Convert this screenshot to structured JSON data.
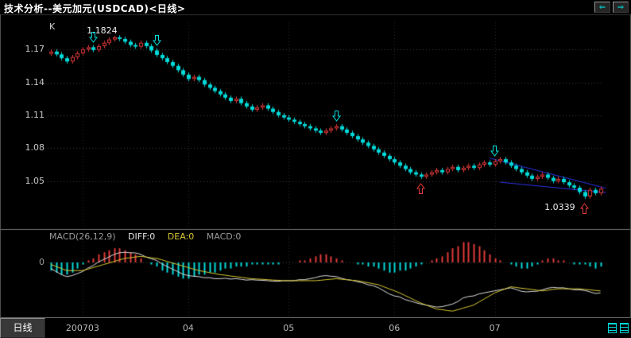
{
  "window": {
    "title": "技术分析--美元加元(USDCAD)<日线>",
    "back_icon": "⇐",
    "forward_icon": "⇒"
  },
  "chart": {
    "type_label": "K",
    "high_annotation": "1.1824",
    "low_annotation": "1.0339"
  },
  "macd_panel": {
    "indicator_label": "MACD(26,12,9)",
    "diff_label": "DIFF:0",
    "dea_label": "DEA:0",
    "macd_label": "MACD:0",
    "zero_label": "0"
  },
  "bottom_bar": {
    "period_label": "日线"
  },
  "colors": {
    "up": "#e23a3a",
    "down": "#00d9d9",
    "grid": "#3f3f3f",
    "vgrid": "#2b2b2b",
    "frame": "#787878",
    "trendline": "#2d35e8",
    "diff_line": "#dcdcdc",
    "dea_line": "#d8c832",
    "annotation": "#ededed"
  },
  "chart_data": {
    "type": "candlestick",
    "title": "USDCAD Daily (日线) with MACD(26,12,9)",
    "y_axis": {
      "ticks": [
        1.17,
        1.14,
        1.11,
        1.08,
        1.05
      ],
      "min": 1.0339,
      "max": 1.1824
    },
    "x_axis": {
      "ticks": [
        {
          "label": "200703",
          "index": 6
        },
        {
          "label": "04",
          "index": 26
        },
        {
          "label": "05",
          "index": 45
        },
        {
          "label": "06",
          "index": 65
        },
        {
          "label": "07",
          "index": 84
        }
      ]
    },
    "closes": [
      1.168,
      1.1655,
      1.162,
      1.159,
      1.163,
      1.1665,
      1.17,
      1.172,
      1.1695,
      1.173,
      1.176,
      1.179,
      1.181,
      1.1795,
      1.177,
      1.174,
      1.1725,
      1.176,
      1.173,
      1.169,
      1.165,
      1.162,
      1.1585,
      1.155,
      1.151,
      1.147,
      1.143,
      1.145,
      1.142,
      1.138,
      1.135,
      1.132,
      1.129,
      1.126,
      1.123,
      1.125,
      1.121,
      1.118,
      1.115,
      1.117,
      1.119,
      1.116,
      1.113,
      1.11,
      1.108,
      1.106,
      1.104,
      1.102,
      1.1,
      1.098,
      1.096,
      1.094,
      1.096,
      1.098,
      1.1,
      1.097,
      1.094,
      1.091,
      1.088,
      1.085,
      1.082,
      1.079,
      1.076,
      1.073,
      1.07,
      1.067,
      1.064,
      1.061,
      1.058,
      1.056,
      1.054,
      1.056,
      1.058,
      1.06,
      1.058,
      1.061,
      1.063,
      1.06,
      1.062,
      1.064,
      1.062,
      1.065,
      1.067,
      1.065,
      1.068,
      1.07,
      1.067,
      1.064,
      1.061,
      1.058,
      1.055,
      1.052,
      1.054,
      1.056,
      1.053,
      1.05,
      1.052,
      1.049,
      1.046,
      1.044,
      1.04,
      1.036,
      1.042,
      1.039,
      1.043
    ],
    "high_point": {
      "index": 12,
      "price": 1.1824
    },
    "low_point": {
      "index": 101,
      "price": 1.0339
    },
    "signals": [
      {
        "index": 8,
        "type": "sell"
      },
      {
        "index": 20,
        "type": "sell"
      },
      {
        "index": 54,
        "type": "sell"
      },
      {
        "index": 84,
        "type": "sell"
      },
      {
        "index": 70,
        "type": "buy"
      },
      {
        "index": 101,
        "type": "buy"
      }
    ],
    "trendlines": [
      {
        "from": {
          "index": 83,
          "price": 1.071
        },
        "to": {
          "index": 105,
          "price": 1.0435
        }
      },
      {
        "from": {
          "index": 85,
          "price": 1.049
        },
        "to": {
          "index": 105,
          "price": 1.0395
        }
      }
    ],
    "macd": {
      "params": [
        26,
        12,
        9
      ],
      "value_unit": 0.001,
      "hist": [
        -4,
        -5,
        -6,
        -6,
        -5,
        -3,
        -1,
        1,
        2,
        4,
        5,
        6,
        7,
        7,
        6,
        5,
        4,
        2,
        0,
        -1,
        -2,
        -4,
        -5,
        -6,
        -7,
        -8,
        -8,
        -7,
        -6,
        -6,
        -5,
        -5,
        -4,
        -3,
        -3,
        -2,
        -2,
        -2,
        -1,
        -1,
        -1,
        -1,
        -1,
        -1,
        0,
        0,
        0,
        1,
        1,
        2,
        3,
        4,
        4,
        3,
        2,
        1,
        0,
        0,
        -1,
        -1,
        -2,
        -2,
        -3,
        -4,
        -5,
        -5,
        -4,
        -4,
        -3,
        -2,
        -1,
        0,
        1,
        2,
        3,
        5,
        7,
        8,
        10,
        10,
        9,
        8,
        6,
        4,
        2,
        1,
        0,
        -1,
        -2,
        -3,
        -3,
        -2,
        -1,
        1,
        2,
        2,
        1,
        1,
        0,
        -1,
        -1,
        -1,
        -2,
        -3,
        -2
      ],
      "dea": [
        -1,
        -2,
        -3,
        -4,
        -4,
        -4,
        -4,
        -3.3,
        -2.5,
        -1.8,
        -1,
        -0.3,
        0.5,
        1.3,
        2,
        2.3,
        2.7,
        3,
        2.7,
        2.3,
        2,
        1.3,
        0.5,
        -0.3,
        -1,
        -1.8,
        -2.5,
        -3.3,
        -4,
        -4.5,
        -5,
        -5.5,
        -6,
        -6.3,
        -6.7,
        -7,
        -7.3,
        -7.7,
        -8,
        -8.2,
        -8.3,
        -8.5,
        -8.7,
        -8.8,
        -9,
        -9,
        -9,
        -9,
        -9,
        -9,
        -9,
        -8.8,
        -8.5,
        -8.3,
        -8,
        -8.3,
        -8.5,
        -8.8,
        -9,
        -9.5,
        -10,
        -10.5,
        -11,
        -12,
        -13,
        -14,
        -15,
        -16.3,
        -17.5,
        -18.8,
        -20,
        -21,
        -22,
        -23,
        -23.3,
        -23.7,
        -24,
        -23.3,
        -22.5,
        -21.8,
        -21,
        -19.5,
        -18,
        -16.5,
        -15,
        -14,
        -13,
        -12,
        -12.3,
        -12.7,
        -13,
        -13.3,
        -13.7,
        -14,
        -13.7,
        -13.3,
        -13,
        -13,
        -13,
        -13,
        -13,
        -13.3,
        -13.5,
        -13.8,
        -14
      ]
    }
  }
}
